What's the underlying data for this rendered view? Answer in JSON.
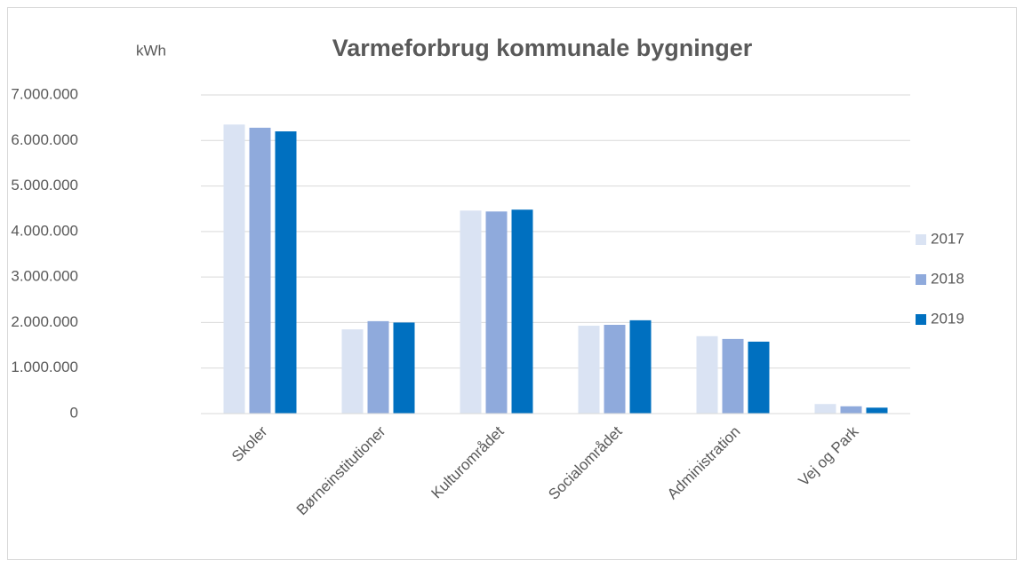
{
  "chart_data": {
    "type": "bar",
    "title": "Varmeforbrug kommunale bygninger",
    "y_label": "kWh",
    "categories": [
      "Skoler",
      "Børneinstitutioner",
      "Kulturområdet",
      "Socialområdet",
      "Administration",
      "Vej og Park"
    ],
    "series": [
      {
        "name": "2017",
        "color": "#dae3f3",
        "values": [
          6350000,
          1850000,
          4460000,
          1930000,
          1700000,
          210000
        ]
      },
      {
        "name": "2018",
        "color": "#8faadc",
        "values": [
          6280000,
          2030000,
          4440000,
          1950000,
          1640000,
          160000
        ]
      },
      {
        "name": "2019",
        "color": "#0070c0",
        "values": [
          6200000,
          2000000,
          4480000,
          2050000,
          1580000,
          130000
        ]
      }
    ],
    "ylim": [
      0,
      7000000
    ],
    "yticks": [
      0,
      {
        "value": 1000000,
        "label": "1.000.000"
      },
      {
        "value": 2000000,
        "label": "2.000.000"
      },
      {
        "value": 3000000,
        "label": "3.000.000"
      },
      {
        "value": 4000000,
        "label": "4.000.000"
      },
      {
        "value": 5000000,
        "label": "5.000.000"
      },
      {
        "value": 6000000,
        "label": "6.000.000"
      },
      {
        "value": 7000000,
        "label": "7.000.000"
      }
    ],
    "grid": true,
    "legend": "right"
  }
}
